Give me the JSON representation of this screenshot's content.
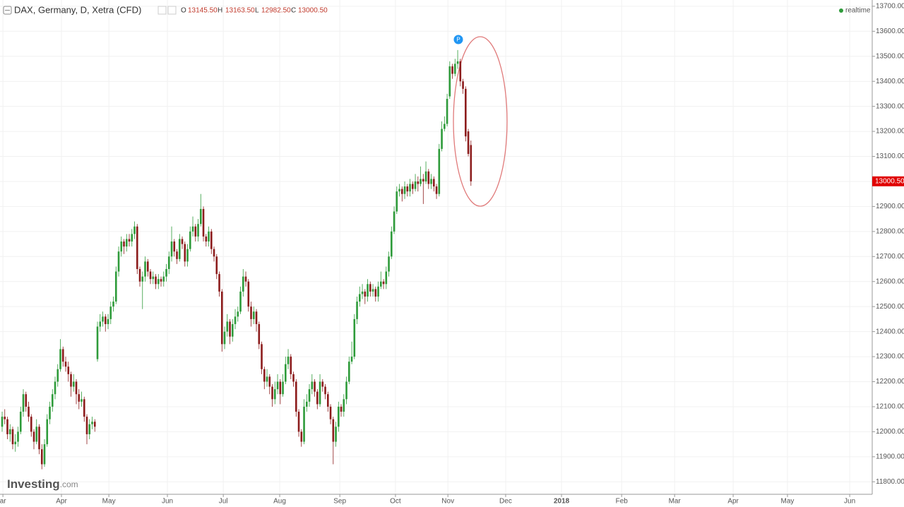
{
  "chart_data": {
    "type": "candlestick",
    "title": "DAX, Germany, D, Xetra (CFD)",
    "header": {
      "o_label": "O",
      "open": "13145.50",
      "h_label": "H",
      "high": "13163.50",
      "l_label": "L",
      "low": "12982.50",
      "c_label": "C",
      "close": "13000.50"
    },
    "realtime": "realtime",
    "marker": "P",
    "logo": {
      "main": "Investing",
      "suffix": ".com"
    },
    "last_price": {
      "value": 13000.5,
      "label": "13000.50"
    },
    "up_color": "#2e9b3a",
    "down_color": "#8c1c1c",
    "grid": true,
    "xlim": [
      -0.8,
      328.5
    ],
    "ylim": [
      11750,
      13725
    ],
    "xticks": [
      {
        "value": 0.3,
        "label": "ar"
      },
      {
        "value": 22.4,
        "label": "Apr"
      },
      {
        "value": 40.3,
        "label": "May"
      },
      {
        "value": 62.4,
        "label": "Jun"
      },
      {
        "value": 83.5,
        "label": "Jul"
      },
      {
        "value": 104.8,
        "label": "Aug"
      },
      {
        "value": 127.5,
        "label": "Sep"
      },
      {
        "value": 148.5,
        "label": "Oct"
      },
      {
        "value": 168.3,
        "label": "Nov"
      },
      {
        "value": 190.1,
        "label": "Dec"
      },
      {
        "value": 211.2,
        "label": "2018"
      },
      {
        "value": 233.9,
        "label": "Feb"
      },
      {
        "value": 253.9,
        "label": "Mar"
      },
      {
        "value": 276,
        "label": "Apr"
      },
      {
        "value": 296.5,
        "label": "May"
      },
      {
        "value": 320,
        "label": "Jun"
      }
    ],
    "yticks": [
      {
        "value": 11800,
        "label": "11800.00"
      },
      {
        "value": 11900,
        "label": "11900.00"
      },
      {
        "value": 12000,
        "label": "12000.00"
      },
      {
        "value": 12100,
        "label": "12100.00"
      },
      {
        "value": 12200,
        "label": "12200.00"
      },
      {
        "value": 12300,
        "label": "12300.00"
      },
      {
        "value": 12400,
        "label": "12400.00"
      },
      {
        "value": 12500,
        "label": "12500.00"
      },
      {
        "value": 12600,
        "label": "12600.00"
      },
      {
        "value": 12700,
        "label": "12700.00"
      },
      {
        "value": 12800,
        "label": "12800.00"
      },
      {
        "value": 12900,
        "label": "12900.00"
      },
      {
        "value": 13000,
        "label": "13000.00"
      },
      {
        "value": 13100,
        "label": "13100.00"
      },
      {
        "value": 13200,
        "label": "13200.00"
      },
      {
        "value": 13300,
        "label": "13300.00"
      },
      {
        "value": 13400,
        "label": "13400.00"
      },
      {
        "value": 13500,
        "label": "13500.00"
      },
      {
        "value": 13600,
        "label": "13600.00"
      },
      {
        "value": 13700,
        "label": "13700.00"
      }
    ],
    "ohlc": [
      [
        12020,
        12080,
        12000,
        12060
      ],
      [
        12060,
        12090,
        12030,
        12050
      ],
      [
        12050,
        12060,
        11970,
        11990
      ],
      [
        11990,
        12030,
        11960,
        12010
      ],
      [
        12010,
        12020,
        11930,
        11950
      ],
      [
        11950,
        11990,
        11920,
        11960
      ],
      [
        11960,
        12020,
        11940,
        12000
      ],
      [
        12000,
        12100,
        11990,
        12080
      ],
      [
        12080,
        12170,
        12060,
        12150
      ],
      [
        12150,
        12160,
        12080,
        12100
      ],
      [
        12100,
        12120,
        12040,
        12060
      ],
      [
        12060,
        12070,
        11980,
        12000
      ],
      [
        12000,
        12010,
        11930,
        11960
      ],
      [
        11960,
        12050,
        11950,
        12020
      ],
      [
        12020,
        12030,
        11910,
        11930
      ],
      [
        11930,
        11950,
        11850,
        11870
      ],
      [
        11870,
        11970,
        11860,
        11950
      ],
      [
        11950,
        12070,
        11940,
        12050
      ],
      [
        12050,
        12120,
        12030,
        12100
      ],
      [
        12100,
        12170,
        12080,
        12150
      ],
      [
        12150,
        12220,
        12130,
        12200
      ],
      [
        12200,
        12270,
        12180,
        12250
      ],
      [
        12250,
        12370,
        12240,
        12330
      ],
      [
        12330,
        12340,
        12260,
        12280
      ],
      [
        12280,
        12300,
        12240,
        12260
      ],
      [
        12260,
        12280,
        12200,
        12230
      ],
      [
        12230,
        12240,
        12140,
        12180
      ],
      [
        12180,
        12230,
        12160,
        12200
      ],
      [
        12200,
        12210,
        12110,
        12150
      ],
      [
        12150,
        12170,
        12090,
        12120
      ],
      [
        12120,
        12160,
        12100,
        12130
      ],
      [
        12130,
        12140,
        12040,
        12060
      ],
      [
        12060,
        12070,
        11950,
        11990
      ],
      [
        11990,
        12050,
        11970,
        12030
      ],
      [
        12030,
        12060,
        12010,
        12040
      ],
      [
        12040,
        12050,
        12000,
        12020
      ],
      [
        12290,
        12440,
        12280,
        12420
      ],
      [
        12420,
        12470,
        12400,
        12440
      ],
      [
        12440,
        12480,
        12420,
        12460
      ],
      [
        12460,
        12470,
        12400,
        12430
      ],
      [
        12430,
        12470,
        12410,
        12450
      ],
      [
        12450,
        12520,
        12430,
        12500
      ],
      [
        12500,
        12540,
        12480,
        12520
      ],
      [
        12520,
        12660,
        12510,
        12640
      ],
      [
        12640,
        12740,
        12620,
        12720
      ],
      [
        12720,
        12780,
        12700,
        12760
      ],
      [
        12760,
        12770,
        12710,
        12740
      ],
      [
        12740,
        12790,
        12720,
        12770
      ],
      [
        12770,
        12790,
        12740,
        12760
      ],
      [
        12760,
        12810,
        12740,
        12790
      ],
      [
        12790,
        12840,
        12770,
        12820
      ],
      [
        12820,
        12830,
        12630,
        12650
      ],
      [
        12650,
        12660,
        12580,
        12600
      ],
      [
        12600,
        12640,
        12490,
        12620
      ],
      [
        12620,
        12700,
        12600,
        12680
      ],
      [
        12680,
        12690,
        12620,
        12640
      ],
      [
        12640,
        12650,
        12590,
        12610
      ],
      [
        12610,
        12640,
        12590,
        12620
      ],
      [
        12620,
        12630,
        12570,
        12590
      ],
      [
        12590,
        12630,
        12570,
        12610
      ],
      [
        12610,
        12620,
        12580,
        12600
      ],
      [
        12600,
        12640,
        12580,
        12620
      ],
      [
        12620,
        12670,
        12600,
        12650
      ],
      [
        12650,
        12720,
        12630,
        12700
      ],
      [
        12700,
        12820,
        12680,
        12760
      ],
      [
        12760,
        12770,
        12700,
        12720
      ],
      [
        12720,
        12730,
        12670,
        12690
      ],
      [
        12690,
        12790,
        12680,
        12770
      ],
      [
        12770,
        12780,
        12730,
        12750
      ],
      [
        12750,
        12760,
        12660,
        12680
      ],
      [
        12680,
        12750,
        12660,
        12730
      ],
      [
        12730,
        12820,
        12720,
        12800
      ],
      [
        12800,
        12860,
        12780,
        12820
      ],
      [
        12820,
        12830,
        12760,
        12780
      ],
      [
        12780,
        12850,
        12760,
        12830
      ],
      [
        12830,
        12950,
        12820,
        12890
      ],
      [
        12890,
        12900,
        12760,
        12780
      ],
      [
        12780,
        12790,
        12740,
        12760
      ],
      [
        12760,
        12820,
        12740,
        12800
      ],
      [
        12800,
        12810,
        12710,
        12730
      ],
      [
        12730,
        12740,
        12680,
        12700
      ],
      [
        12700,
        12710,
        12610,
        12630
      ],
      [
        12630,
        12640,
        12540,
        12560
      ],
      [
        12560,
        12570,
        12320,
        12350
      ],
      [
        12350,
        12420,
        12330,
        12400
      ],
      [
        12400,
        12470,
        12380,
        12440
      ],
      [
        12440,
        12450,
        12350,
        12380
      ],
      [
        12380,
        12450,
        12360,
        12430
      ],
      [
        12430,
        12490,
        12410,
        12460
      ],
      [
        12460,
        12500,
        12440,
        12480
      ],
      [
        12480,
        12580,
        12470,
        12560
      ],
      [
        12560,
        12650,
        12540,
        12620
      ],
      [
        12620,
        12640,
        12580,
        12600
      ],
      [
        12600,
        12610,
        12480,
        12500
      ],
      [
        12500,
        12520,
        12420,
        12450
      ],
      [
        12450,
        12500,
        12430,
        12480
      ],
      [
        12480,
        12490,
        12400,
        12430
      ],
      [
        12430,
        12440,
        12330,
        12350
      ],
      [
        12350,
        12360,
        12230,
        12250
      ],
      [
        12250,
        12260,
        12170,
        12200
      ],
      [
        12200,
        12250,
        12180,
        12220
      ],
      [
        12220,
        12230,
        12150,
        12180
      ],
      [
        12180,
        12190,
        12100,
        12130
      ],
      [
        12130,
        12200,
        12110,
        12170
      ],
      [
        12170,
        12230,
        12150,
        12200
      ],
      [
        12200,
        12210,
        12110,
        12150
      ],
      [
        12150,
        12230,
        12140,
        12200
      ],
      [
        12200,
        12300,
        12190,
        12270
      ],
      [
        12270,
        12330,
        12250,
        12300
      ],
      [
        12300,
        12310,
        12210,
        12230
      ],
      [
        12230,
        12240,
        12180,
        12200
      ],
      [
        12200,
        12210,
        12060,
        12080
      ],
      [
        12080,
        12090,
        11980,
        12000
      ],
      [
        12000,
        12010,
        11940,
        11960
      ],
      [
        11960,
        12130,
        11950,
        12100
      ],
      [
        12100,
        12150,
        12080,
        12120
      ],
      [
        12120,
        12190,
        12100,
        12170
      ],
      [
        12170,
        12230,
        12150,
        12200
      ],
      [
        12200,
        12210,
        12140,
        12160
      ],
      [
        12160,
        12170,
        12090,
        12110
      ],
      [
        12110,
        12230,
        12100,
        12200
      ],
      [
        12200,
        12210,
        12160,
        12180
      ],
      [
        12180,
        12190,
        12130,
        12150
      ],
      [
        12150,
        12160,
        12080,
        12100
      ],
      [
        12100,
        12110,
        12030,
        12050
      ],
      [
        12050,
        12060,
        11870,
        11960
      ],
      [
        11960,
        12040,
        11940,
        12020
      ],
      [
        12020,
        12120,
        12000,
        12100
      ],
      [
        12100,
        12110,
        12060,
        12080
      ],
      [
        12080,
        12150,
        12060,
        12130
      ],
      [
        12130,
        12220,
        12110,
        12200
      ],
      [
        12200,
        12300,
        12190,
        12280
      ],
      [
        12280,
        12360,
        12270,
        12300
      ],
      [
        12300,
        12470,
        12290,
        12450
      ],
      [
        12450,
        12540,
        12430,
        12520
      ],
      [
        12520,
        12580,
        12500,
        12550
      ],
      [
        12550,
        12590,
        12530,
        12560
      ],
      [
        12560,
        12570,
        12510,
        12540
      ],
      [
        12540,
        12610,
        12520,
        12590
      ],
      [
        12590,
        12600,
        12540,
        12560
      ],
      [
        12560,
        12590,
        12540,
        12570
      ],
      [
        12570,
        12580,
        12520,
        12540
      ],
      [
        12540,
        12600,
        12520,
        12580
      ],
      [
        12580,
        12640,
        12570,
        12600
      ],
      [
        12600,
        12610,
        12570,
        12590
      ],
      [
        12590,
        12660,
        12570,
        12640
      ],
      [
        12640,
        12720,
        12620,
        12700
      ],
      [
        12700,
        12820,
        12690,
        12800
      ],
      [
        12800,
        12900,
        12790,
        12880
      ],
      [
        12880,
        12980,
        12870,
        12960
      ],
      [
        12960,
        12990,
        12940,
        12970
      ],
      [
        12970,
        12980,
        12920,
        12950
      ],
      [
        12950,
        13000,
        12930,
        12980
      ],
      [
        12980,
        12990,
        12940,
        12960
      ],
      [
        12960,
        13010,
        12940,
        12990
      ],
      [
        12990,
        13000,
        12950,
        12970
      ],
      [
        12970,
        13030,
        12960,
        13000
      ],
      [
        13000,
        13020,
        12960,
        12990
      ],
      [
        12990,
        13060,
        12980,
        13010
      ],
      [
        13010,
        13030,
        12910,
        13000
      ],
      [
        13000,
        13080,
        12990,
        13040
      ],
      [
        13040,
        13050,
        12970,
        12990
      ],
      [
        12990,
        13030,
        12970,
        13010
      ],
      [
        13010,
        13020,
        12960,
        12980
      ],
      [
        12980,
        12990,
        12930,
        12950
      ],
      [
        12950,
        13150,
        12940,
        13130
      ],
      [
        13130,
        13240,
        13120,
        13210
      ],
      [
        13210,
        13260,
        13200,
        13230
      ],
      [
        13230,
        13350,
        13220,
        13330
      ],
      [
        13340,
        13480,
        13330,
        13460
      ],
      [
        13460,
        13470,
        13410,
        13430
      ],
      [
        13430,
        13490,
        13420,
        13470
      ],
      [
        13470,
        13525,
        13450,
        13480
      ],
      [
        13480,
        13490,
        13380,
        13400
      ],
      [
        13400,
        13410,
        13350,
        13370
      ],
      [
        13370,
        13380,
        13160,
        13180
      ],
      [
        13200,
        13210,
        13100,
        13110
      ],
      [
        13145.5,
        13163.5,
        12982.5,
        13000.5
      ]
    ]
  }
}
